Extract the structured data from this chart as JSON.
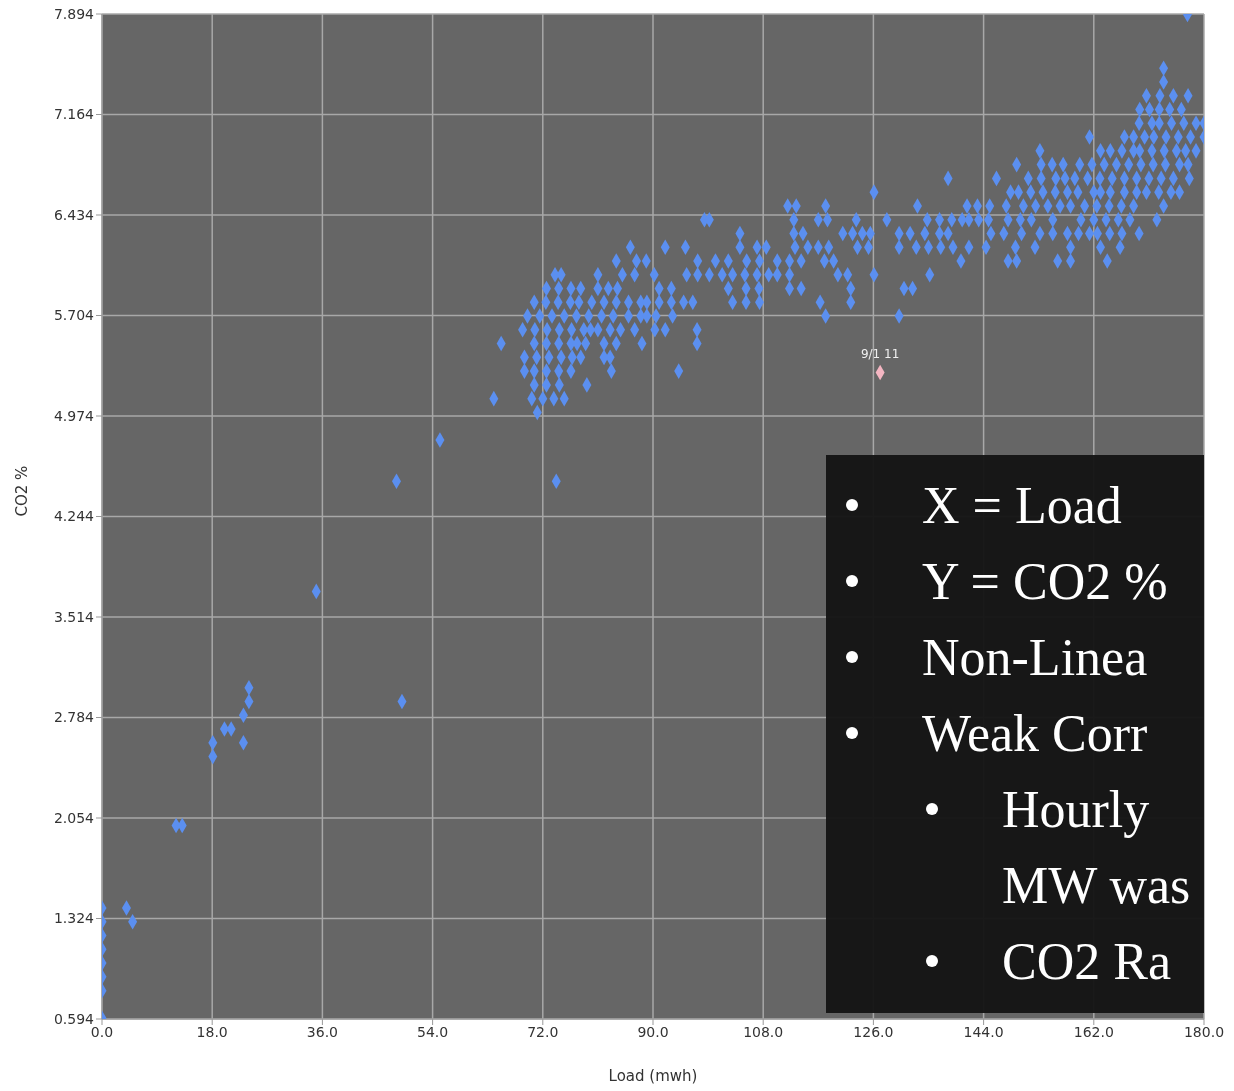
{
  "chart_data": {
    "type": "scatter",
    "xlabel": "Load (mwh)",
    "ylabel": "CO2 %",
    "xlim": [
      0,
      180
    ],
    "xticks": [
      {
        "value": 0,
        "label": "0.0"
      },
      {
        "value": 18,
        "label": "18.0"
      },
      {
        "value": 36,
        "label": "36.0"
      },
      {
        "value": 54,
        "label": "54.0"
      },
      {
        "value": 72,
        "label": "72.0"
      },
      {
        "value": 90,
        "label": "90.0"
      },
      {
        "value": 108,
        "label": "108.0"
      },
      {
        "value": 126,
        "label": "126.0"
      },
      {
        "value": 144,
        "label": "144.0"
      },
      {
        "value": 162,
        "label": "162.0"
      },
      {
        "value": 180,
        "label": "180.0"
      }
    ],
    "ylim": [
      0.594,
      7.894
    ],
    "yticks": [
      0.594,
      1.324,
      2.054,
      2.784,
      3.514,
      4.244,
      4.974,
      5.704,
      6.434,
      7.164,
      7.894
    ],
    "grid": true,
    "marker": "diamond",
    "series": [
      {
        "color": "#5b8ff0",
        "x": [
          0,
          0,
          0,
          0,
          0,
          0,
          0,
          0,
          4,
          5,
          12.1,
          13.1,
          18.1,
          18.1,
          20,
          21.1,
          23.1,
          23.1,
          24,
          24,
          35,
          49,
          48.1,
          55.2,
          64,
          65.2,
          74.2,
          71.1,
          74,
          75,
          81,
          85,
          87,
          90.2,
          95.5,
          97.3,
          99.2,
          101.3,
          103,
          105,
          107,
          108.9,
          110.3,
          112.3,
          120.2,
          121.8,
          126.1,
          135.2,
          72.6,
          74.6,
          76.6,
          78.2,
          81,
          82.7,
          84.2,
          91,
          93,
          102.3,
          105.2,
          107.3,
          112.3,
          114.2,
          122.3,
          131,
          132.4,
          70.6,
          72.5,
          74.5,
          76.5,
          77.9,
          80,
          82,
          84,
          86,
          88,
          89,
          91,
          93,
          95,
          96.5,
          103,
          105.2,
          107.4,
          117.3,
          122.3,
          69.5,
          71.5,
          73.5,
          75.5,
          77.5,
          79.5,
          81.6,
          83.5,
          86,
          88,
          89,
          90.5,
          93.2,
          118.2,
          130.2,
          68.7,
          70.7,
          72.7,
          74.7,
          76.7,
          78.7,
          79.8,
          81,
          83,
          84.7,
          87,
          90.3,
          92,
          97.2,
          70.6,
          72.6,
          74.6,
          76.6,
          77.6,
          79,
          82,
          84,
          88.2,
          97.2,
          69,
          71,
          73,
          75,
          76.8,
          78.2,
          82,
          83,
          69,
          70.6,
          72.6,
          74.6,
          76.6,
          83.2,
          94.2,
          70.6,
          72.6,
          74.7,
          79.2,
          70.2,
          72,
          73.8,
          75.5,
          84,
          87.3,
          88.9,
          97.3,
          100.2,
          102.3,
          105.3,
          107.4,
          110.3,
          112.3,
          114.2,
          118,
          119.5,
          140.3,
          148,
          149.4,
          156.1,
          158.2,
          164.2,
          86.3,
          92,
          95.3,
          104.2,
          107,
          108.5,
          113.2,
          115.3,
          117,
          118.7,
          123.4,
          125.2,
          130.2,
          133,
          135,
          137,
          139,
          141.6,
          144.4,
          149.2,
          152.4,
          158.2,
          163.1,
          166.3,
          104.2,
          113,
          114.5,
          121,
          122.6,
          124.2,
          125.5,
          130.2,
          132,
          134.4,
          136.8,
          138.2,
          145.2,
          147.3,
          150.2,
          153.2,
          155.3,
          157.7,
          159.5,
          161.3,
          162.6,
          164.6,
          166.6,
          169.4,
          98.4,
          99.2,
          113,
          117,
          118.5,
          123.2,
          128.2,
          134.8,
          136.8,
          138.8,
          140.5,
          141.6,
          143.2,
          144.8,
          148,
          150,
          151.8,
          155.3,
          159.9,
          162,
          164,
          166,
          167.9,
          172.3,
          112,
          113.4,
          118.2,
          133.2,
          141.3,
          143,
          145,
          147.7,
          150.5,
          152.5,
          154.5,
          156.5,
          158.2,
          160.5,
          162.5,
          164.5,
          166.5,
          168.5,
          173.4,
          126.1,
          148.4,
          149.7,
          151.7,
          153.7,
          155.7,
          157.7,
          159.4,
          162,
          163.1,
          164.7,
          167,
          169,
          170.6,
          172.6,
          174.6,
          176,
          138.2,
          146.1,
          151.3,
          153.4,
          155.8,
          157.3,
          158.9,
          161,
          163,
          165,
          167,
          169,
          171,
          173,
          175,
          177.6,
          149.4,
          153.4,
          155.2,
          157,
          159.7,
          161.7,
          163.7,
          165.7,
          167.7,
          169.7,
          171.7,
          173.7,
          176,
          177.4,
          153.2,
          163.1,
          164.7,
          166.6,
          168.5,
          169.5,
          171.5,
          173.5,
          175.5,
          177,
          178.7,
          161.3,
          167,
          168.5,
          170.3,
          171.8,
          173.8,
          175.8,
          177.8,
          180,
          169.4,
          171.5,
          172.7,
          174.7,
          176.7,
          178.7,
          180,
          169.5,
          171.1,
          172.7,
          174.4,
          176.3,
          170.6,
          172.8,
          175,
          177.4,
          173.4,
          173.4,
          177.3
        ],
        "values": [
          0.6,
          0.8,
          0.9,
          1.0,
          1.1,
          1.2,
          1.3,
          1.4,
          1.4,
          1.3,
          2.0,
          2.0,
          2.5,
          2.6,
          2.7,
          2.7,
          2.6,
          2.8,
          2.9,
          3.0,
          3.7,
          2.9,
          4.5,
          4.8,
          5.1,
          5.5,
          4.5,
          5.0,
          6.0,
          6.0,
          6.0,
          6.0,
          6.0,
          6.0,
          6.0,
          6.0,
          6.0,
          6.0,
          6.0,
          6.0,
          6.0,
          6.0,
          6.0,
          6.0,
          6.0,
          6.0,
          6.0,
          6.0,
          5.9,
          5.9,
          5.9,
          5.9,
          5.9,
          5.9,
          5.9,
          5.9,
          5.9,
          5.9,
          5.9,
          5.9,
          5.9,
          5.9,
          5.9,
          5.9,
          5.9,
          5.8,
          5.8,
          5.8,
          5.8,
          5.8,
          5.8,
          5.8,
          5.8,
          5.8,
          5.8,
          5.8,
          5.8,
          5.8,
          5.8,
          5.8,
          5.8,
          5.8,
          5.8,
          5.8,
          5.8,
          5.7,
          5.7,
          5.7,
          5.7,
          5.7,
          5.7,
          5.7,
          5.7,
          5.7,
          5.7,
          5.7,
          5.7,
          5.7,
          5.7,
          5.7,
          5.6,
          5.6,
          5.6,
          5.6,
          5.6,
          5.6,
          5.6,
          5.6,
          5.6,
          5.6,
          5.6,
          5.6,
          5.6,
          5.6,
          5.5,
          5.5,
          5.5,
          5.5,
          5.5,
          5.5,
          5.5,
          5.5,
          5.5,
          5.5,
          5.4,
          5.4,
          5.4,
          5.4,
          5.4,
          5.4,
          5.4,
          5.4,
          5.3,
          5.3,
          5.3,
          5.3,
          5.3,
          5.3,
          5.3,
          5.2,
          5.2,
          5.2,
          5.2,
          5.1,
          5.1,
          5.1,
          5.1,
          6.1,
          6.1,
          6.1,
          6.1,
          6.1,
          6.1,
          6.1,
          6.1,
          6.1,
          6.1,
          6.1,
          6.1,
          6.1,
          6.1,
          6.1,
          6.1,
          6.1,
          6.1,
          6.1,
          6.2,
          6.2,
          6.2,
          6.2,
          6.2,
          6.2,
          6.2,
          6.2,
          6.2,
          6.2,
          6.2,
          6.2,
          6.2,
          6.2,
          6.2,
          6.2,
          6.2,
          6.2,
          6.2,
          6.2,
          6.2,
          6.2,
          6.2,
          6.2,
          6.3,
          6.3,
          6.3,
          6.3,
          6.3,
          6.3,
          6.3,
          6.3,
          6.3,
          6.3,
          6.3,
          6.3,
          6.3,
          6.3,
          6.3,
          6.3,
          6.3,
          6.3,
          6.3,
          6.3,
          6.3,
          6.3,
          6.3,
          6.3,
          6.4,
          6.4,
          6.4,
          6.4,
          6.4,
          6.4,
          6.4,
          6.4,
          6.4,
          6.4,
          6.4,
          6.4,
          6.4,
          6.4,
          6.4,
          6.4,
          6.4,
          6.4,
          6.4,
          6.4,
          6.4,
          6.4,
          6.4,
          6.4,
          6.5,
          6.5,
          6.5,
          6.5,
          6.5,
          6.5,
          6.5,
          6.5,
          6.5,
          6.5,
          6.5,
          6.5,
          6.5,
          6.5,
          6.5,
          6.5,
          6.5,
          6.5,
          6.5,
          6.6,
          6.6,
          6.6,
          6.6,
          6.6,
          6.6,
          6.6,
          6.6,
          6.6,
          6.6,
          6.6,
          6.6,
          6.6,
          6.6,
          6.6,
          6.6,
          6.6,
          6.7,
          6.7,
          6.7,
          6.7,
          6.7,
          6.7,
          6.7,
          6.7,
          6.7,
          6.7,
          6.7,
          6.7,
          6.7,
          6.7,
          6.7,
          6.7,
          6.8,
          6.8,
          6.8,
          6.8,
          6.8,
          6.8,
          6.8,
          6.8,
          6.8,
          6.8,
          6.8,
          6.8,
          6.8,
          6.8,
          6.9,
          6.9,
          6.9,
          6.9,
          6.9,
          6.9,
          6.9,
          6.9,
          6.9,
          6.9,
          6.9,
          7.0,
          7.0,
          7.0,
          7.0,
          7.0,
          7.0,
          7.0,
          7.0,
          7.0,
          7.1,
          7.1,
          7.1,
          7.1,
          7.1,
          7.1,
          7.1,
          7.2,
          7.2,
          7.2,
          7.2,
          7.2,
          7.3,
          7.3,
          7.3,
          7.3,
          7.4,
          7.5,
          7.89
        ]
      },
      {
        "color": "#f4b6c2",
        "x": [
          127.1
        ],
        "values": [
          5.29
        ]
      }
    ],
    "annotations": [
      {
        "text": "9/1 11",
        "x": 127.1,
        "y": 5.29
      },
      "X = Load",
      "Y = CO2 %",
      "Non-Linea",
      "Weak Corr",
      "Hourly",
      "MW was",
      "CO2 Ra"
    ]
  }
}
